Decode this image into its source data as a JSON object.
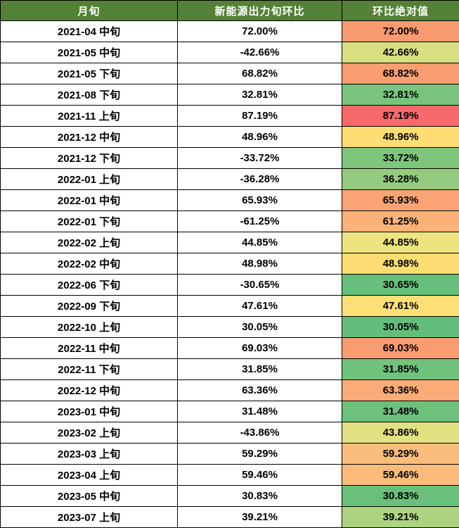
{
  "table": {
    "headers": [
      "月旬",
      "新能源出力旬环比",
      "环比绝对值"
    ],
    "header_bg": "#538135",
    "header_text_color": "#FFFFFF",
    "border_color": "#000000",
    "rows": [
      {
        "period": "2021-04 中旬",
        "change": "72.00%",
        "abs": "72.00%",
        "abs_bg": "#F99A70"
      },
      {
        "period": "2021-05 中旬",
        "change": "-42.66%",
        "abs": "42.66%",
        "abs_bg": "#D8DF80"
      },
      {
        "period": "2021-05 下旬",
        "change": "68.82%",
        "abs": "68.82%",
        "abs_bg": "#F99D72"
      },
      {
        "period": "2021-08 下旬",
        "change": "32.81%",
        "abs": "32.81%",
        "abs_bg": "#78C47D"
      },
      {
        "period": "2021-11 上旬",
        "change": "87.19%",
        "abs": "87.19%",
        "abs_bg": "#F8696B"
      },
      {
        "period": "2021-12 中旬",
        "change": "48.96%",
        "abs": "48.96%",
        "abs_bg": "#FEDD72"
      },
      {
        "period": "2021-12 下旬",
        "change": "-33.72%",
        "abs": "33.72%",
        "abs_bg": "#7FC67D"
      },
      {
        "period": "2022-01 上旬",
        "change": "-36.28%",
        "abs": "36.28%",
        "abs_bg": "#94CB7E"
      },
      {
        "period": "2022-01 中旬",
        "change": "65.93%",
        "abs": "65.93%",
        "abs_bg": "#FAA375"
      },
      {
        "period": "2022-01 下旬",
        "change": "-61.25%",
        "abs": "61.25%",
        "abs_bg": "#FAB278"
      },
      {
        "period": "2022-02 上旬",
        "change": "44.85%",
        "abs": "44.85%",
        "abs_bg": "#EDE47F"
      },
      {
        "period": "2022-02 中旬",
        "change": "48.98%",
        "abs": "48.98%",
        "abs_bg": "#FEDD72"
      },
      {
        "period": "2022-06 下旬",
        "change": "-30.65%",
        "abs": "30.65%",
        "abs_bg": "#66BF7B"
      },
      {
        "period": "2022-09 下旬",
        "change": "47.61%",
        "abs": "47.61%",
        "abs_bg": "#FEDF75"
      },
      {
        "period": "2022-10 上旬",
        "change": "30.05%",
        "abs": "30.05%",
        "abs_bg": "#63BE7B"
      },
      {
        "period": "2022-11 中旬",
        "change": "69.03%",
        "abs": "69.03%",
        "abs_bg": "#F99C72"
      },
      {
        "period": "2022-11 下旬",
        "change": "31.85%",
        "abs": "31.85%",
        "abs_bg": "#70C27C"
      },
      {
        "period": "2022-12 中旬",
        "change": "63.36%",
        "abs": "63.36%",
        "abs_bg": "#FAAB77"
      },
      {
        "period": "2023-01 中旬",
        "change": "31.48%",
        "abs": "31.48%",
        "abs_bg": "#6DC17C"
      },
      {
        "period": "2023-02 上旬",
        "change": "-43.86%",
        "abs": "43.86%",
        "abs_bg": "#E2E181"
      },
      {
        "period": "2023-03 上旬",
        "change": "59.29%",
        "abs": "59.29%",
        "abs_bg": "#FBBD7C"
      },
      {
        "period": "2023-04 上旬",
        "change": "59.46%",
        "abs": "59.46%",
        "abs_bg": "#FBBC7B"
      },
      {
        "period": "2023-05 中旬",
        "change": "30.83%",
        "abs": "30.83%",
        "abs_bg": "#68C07B"
      },
      {
        "period": "2023-07 上旬",
        "change": "39.21%",
        "abs": "39.21%",
        "abs_bg": "#ACD380"
      }
    ]
  },
  "chart_data": {
    "type": "table",
    "title": "",
    "columns": [
      "月旬",
      "新能源出力旬环比",
      "环比绝对值"
    ],
    "rows": [
      [
        "2021-04 中旬",
        72.0,
        72.0
      ],
      [
        "2021-05 中旬",
        -42.66,
        42.66
      ],
      [
        "2021-05 下旬",
        68.82,
        68.82
      ],
      [
        "2021-08 下旬",
        32.81,
        32.81
      ],
      [
        "2021-11 上旬",
        87.19,
        87.19
      ],
      [
        "2021-12 中旬",
        48.96,
        48.96
      ],
      [
        "2021-12 下旬",
        -33.72,
        33.72
      ],
      [
        "2022-01 上旬",
        -36.28,
        36.28
      ],
      [
        "2022-01 中旬",
        65.93,
        65.93
      ],
      [
        "2022-01 下旬",
        -61.25,
        61.25
      ],
      [
        "2022-02 上旬",
        44.85,
        44.85
      ],
      [
        "2022-02 中旬",
        48.98,
        48.98
      ],
      [
        "2022-06 下旬",
        -30.65,
        30.65
      ],
      [
        "2022-09 下旬",
        47.61,
        47.61
      ],
      [
        "2022-10 上旬",
        30.05,
        30.05
      ],
      [
        "2022-11 中旬",
        69.03,
        69.03
      ],
      [
        "2022-11 下旬",
        31.85,
        31.85
      ],
      [
        "2022-12 中旬",
        63.36,
        63.36
      ],
      [
        "2023-01 中旬",
        31.48,
        31.48
      ],
      [
        "2023-02 上旬",
        -43.86,
        43.86
      ],
      [
        "2023-03 上旬",
        59.29,
        59.29
      ],
      [
        "2023-04 上旬",
        59.46,
        59.46
      ],
      [
        "2023-05 中旬",
        30.83,
        30.83
      ],
      [
        "2023-07 上旬",
        39.21,
        39.21
      ]
    ],
    "color_scale": {
      "applied_to_column": "环比绝对值",
      "min_value": 30.05,
      "min_color": "#63BE7B",
      "mid_color": "#FEDD72",
      "max_value": 87.19,
      "max_color": "#F8696B"
    },
    "layout": {
      "header_bg": "#538135",
      "header_text": "#FFFFFF",
      "grid": true,
      "rows_count": 24
    }
  }
}
